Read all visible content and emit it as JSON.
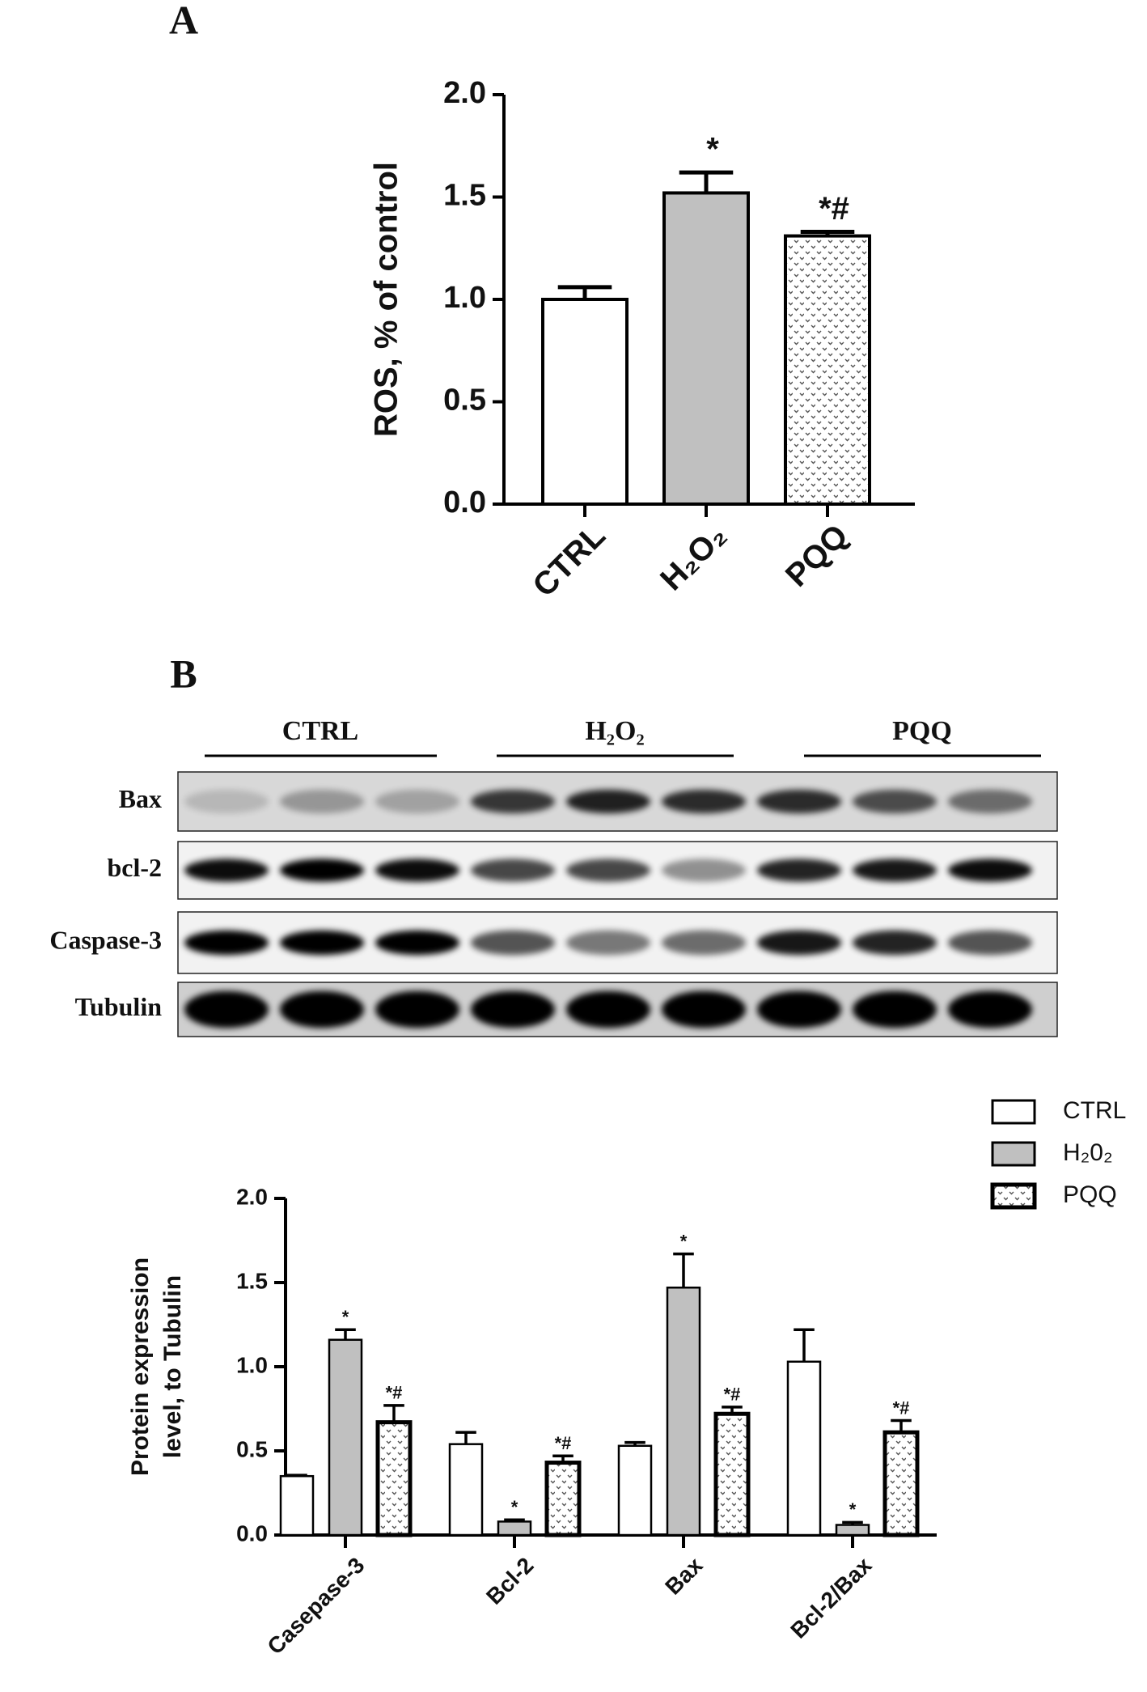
{
  "panel_labels": [
    "A",
    "B"
  ],
  "blot": {
    "groups": [
      "CTRL",
      "H₂O₂",
      "PQQ"
    ],
    "rows": [
      "Bax",
      "bcl-2",
      "Caspase-3",
      "Tubulin"
    ]
  },
  "chart_data": [
    {
      "type": "bar",
      "ylabel": "ROS, % of control",
      "categories": [
        "CTRL",
        "H₂O₂",
        "PQQ"
      ],
      "values": [
        1.0,
        1.52,
        1.31
      ],
      "errors": [
        0.06,
        0.1,
        0.02
      ],
      "annotations": [
        null,
        "*",
        "*#"
      ],
      "colors": [
        "#ffffff",
        "#c0c0c0",
        "#ffffff"
      ],
      "patterns": [
        null,
        null,
        "dotted"
      ],
      "ylim": [
        0,
        2
      ],
      "yticks": [
        {
          "value": 0,
          "label": "0.0"
        },
        0.5,
        {
          "value": 1,
          "label": "1.0"
        },
        1.5,
        {
          "value": 2,
          "label": "2.0"
        }
      ]
    },
    {
      "type": "grouped_bar",
      "ylabel": [
        "Protein expression",
        "level, to Tubulin"
      ],
      "categories": [
        "Casepase-3",
        "Bcl-2",
        "Bax",
        "Bcl-2/Bax"
      ],
      "series": [
        {
          "name": "CTRL",
          "color": "#ffffff",
          "values": [
            0.35,
            0.54,
            0.53,
            1.03
          ],
          "errors": [
            0.005,
            0.07,
            0.02,
            0.19
          ]
        },
        {
          "name": "H₂0₂",
          "color": "#c0c0c0",
          "values": [
            1.16,
            0.08,
            1.47,
            0.06
          ],
          "errors": [
            0.06,
            0.01,
            0.2,
            0.015
          ],
          "annotations": [
            "*",
            "*",
            "*",
            "*"
          ]
        },
        {
          "name": "PQQ",
          "color": "#ffffff",
          "pattern": "dotted",
          "values": [
            0.67,
            0.43,
            0.72,
            0.61
          ],
          "errors": [
            0.1,
            0.04,
            0.04,
            0.07
          ],
          "annotations": [
            "*#",
            "*#",
            "*#",
            "*#"
          ]
        }
      ],
      "ylim": [
        0,
        2
      ],
      "yticks": [
        {
          "value": 0,
          "label": "0.0"
        },
        0.5,
        {
          "value": 1,
          "label": "1.0"
        },
        1.5,
        {
          "value": 2,
          "label": "2.0"
        }
      ],
      "legend": "top-right"
    }
  ]
}
